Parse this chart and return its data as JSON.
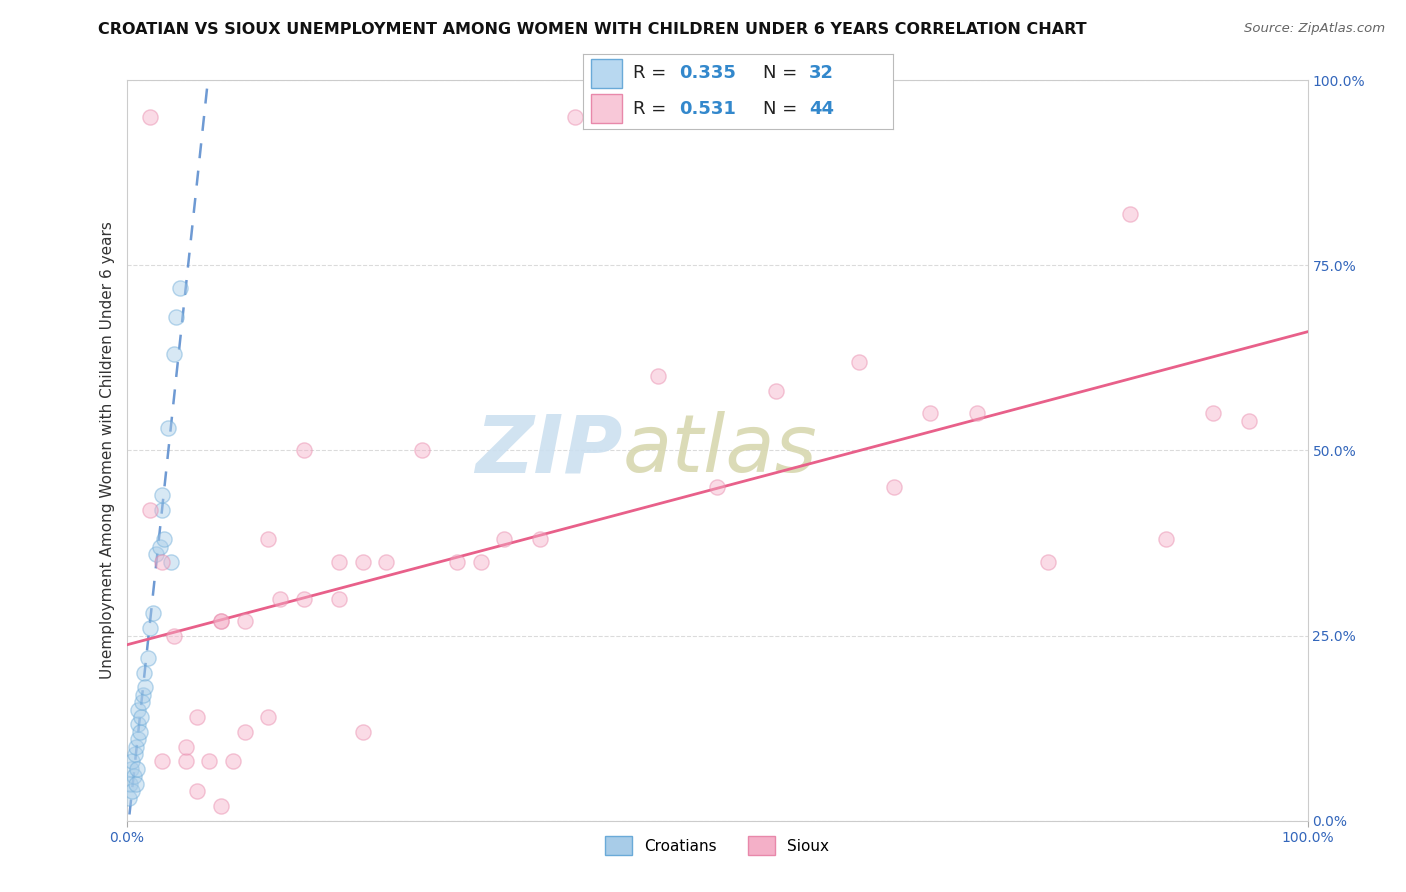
{
  "title": "CROATIAN VS SIOUX UNEMPLOYMENT AMONG WOMEN WITH CHILDREN UNDER 6 YEARS CORRELATION CHART",
  "source": "Source: ZipAtlas.com",
  "ylabel": "Unemployment Among Women with Children Under 6 years",
  "xlim": [
    0.0,
    1.0
  ],
  "ylim": [
    0.0,
    1.0
  ],
  "ytick_vals": [
    0.0,
    0.25,
    0.5,
    0.75,
    1.0
  ],
  "ytick_labels": [
    "0.0%",
    "25.0%",
    "50.0%",
    "75.0%",
    "100.0%"
  ],
  "xtick_vals": [
    0.0,
    1.0
  ],
  "xtick_labels": [
    "0.0%",
    "100.0%"
  ],
  "croatians_color": "#a8cce8",
  "sioux_color": "#f4b0c8",
  "croatians_edge": "#6aaad8",
  "sioux_edge": "#e888aa",
  "trendline_croatian_color": "#5588cc",
  "trendline_sioux_color": "#e8608a",
  "legend_R_color": "#3388cc",
  "legend_N_color": "#3388cc",
  "legend_box_color_croatian": "#b8d8f0",
  "legend_box_color_sioux": "#f8c8d8",
  "watermark_zip_color": "#cce0f0",
  "watermark_atlas_color": "#d8d8b0",
  "R_croatian": 0.335,
  "N_croatian": 32,
  "R_sioux": 0.531,
  "N_sioux": 44,
  "croatians_x": [
    0.002,
    0.003,
    0.004,
    0.005,
    0.005,
    0.006,
    0.007,
    0.008,
    0.008,
    0.009,
    0.01,
    0.01,
    0.01,
    0.011,
    0.012,
    0.013,
    0.014,
    0.015,
    0.016,
    0.018,
    0.02,
    0.022,
    0.025,
    0.028,
    0.03,
    0.03,
    0.032,
    0.035,
    0.038,
    0.04,
    0.042,
    0.045
  ],
  "croatians_y": [
    0.03,
    0.05,
    0.07,
    0.04,
    0.08,
    0.06,
    0.09,
    0.05,
    0.1,
    0.07,
    0.11,
    0.13,
    0.15,
    0.12,
    0.14,
    0.16,
    0.17,
    0.2,
    0.18,
    0.22,
    0.26,
    0.28,
    0.36,
    0.37,
    0.42,
    0.44,
    0.38,
    0.53,
    0.35,
    0.63,
    0.68,
    0.72
  ],
  "sioux_x": [
    0.02,
    0.02,
    0.03,
    0.03,
    0.04,
    0.05,
    0.05,
    0.06,
    0.06,
    0.07,
    0.08,
    0.08,
    0.08,
    0.09,
    0.1,
    0.1,
    0.12,
    0.12,
    0.13,
    0.15,
    0.15,
    0.18,
    0.18,
    0.2,
    0.2,
    0.22,
    0.25,
    0.28,
    0.3,
    0.32,
    0.35,
    0.38,
    0.45,
    0.5,
    0.55,
    0.62,
    0.65,
    0.68,
    0.72,
    0.78,
    0.85,
    0.88,
    0.92,
    0.95
  ],
  "sioux_y": [
    0.95,
    0.42,
    0.35,
    0.08,
    0.25,
    0.08,
    0.1,
    0.04,
    0.14,
    0.08,
    0.02,
    0.27,
    0.27,
    0.08,
    0.12,
    0.27,
    0.14,
    0.38,
    0.3,
    0.5,
    0.3,
    0.3,
    0.35,
    0.12,
    0.35,
    0.35,
    0.5,
    0.35,
    0.35,
    0.38,
    0.38,
    0.95,
    0.6,
    0.45,
    0.58,
    0.62,
    0.45,
    0.55,
    0.55,
    0.35,
    0.82,
    0.38,
    0.55,
    0.54
  ],
  "background_color": "#ffffff",
  "grid_color": "#cccccc",
  "title_fontsize": 11.5,
  "axis_label_fontsize": 11,
  "tick_fontsize": 10,
  "legend_fontsize": 13,
  "marker_size": 120,
  "marker_alpha": 0.45,
  "marker_linewidth": 1.0
}
